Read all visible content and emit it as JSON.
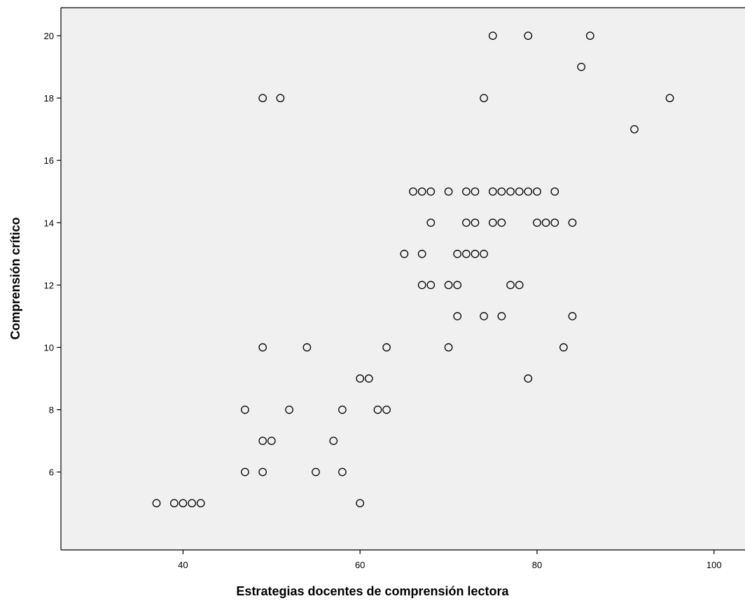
{
  "chart_data": {
    "type": "scatter",
    "title": "",
    "xlabel": "Estrategias docentes de comprensión lectora",
    "ylabel": "Comprensión crítico",
    "xlim": [
      26.2,
      103.5
    ],
    "ylim": [
      3.5,
      20.9
    ],
    "x_ticks": [
      40,
      60,
      80,
      100
    ],
    "y_ticks": [
      6,
      8,
      10,
      12,
      14,
      16,
      18,
      20
    ],
    "grid": false,
    "legend": "none",
    "colors": {
      "plot_background": "#f0f0f0",
      "marker_edge": "#000000",
      "frame": "#000000",
      "page_background": "#ffffff"
    },
    "marker": "open-circle",
    "points": [
      [
        75,
        20
      ],
      [
        79,
        20
      ],
      [
        86,
        20
      ],
      [
        85,
        19
      ],
      [
        49,
        18
      ],
      [
        51,
        18
      ],
      [
        74,
        18
      ],
      [
        95,
        18
      ],
      [
        91,
        17
      ],
      [
        66,
        15
      ],
      [
        67,
        15
      ],
      [
        68,
        15
      ],
      [
        70,
        15
      ],
      [
        72,
        15
      ],
      [
        73,
        15
      ],
      [
        75,
        15
      ],
      [
        76,
        15
      ],
      [
        77,
        15
      ],
      [
        78,
        15
      ],
      [
        79,
        15
      ],
      [
        80,
        15
      ],
      [
        82,
        15
      ],
      [
        68,
        14
      ],
      [
        72,
        14
      ],
      [
        73,
        14
      ],
      [
        75,
        14
      ],
      [
        76,
        14
      ],
      [
        80,
        14
      ],
      [
        81,
        14
      ],
      [
        82,
        14
      ],
      [
        84,
        14
      ],
      [
        65,
        13
      ],
      [
        67,
        13
      ],
      [
        71,
        13
      ],
      [
        72,
        13
      ],
      [
        73,
        13
      ],
      [
        74,
        13
      ],
      [
        67,
        12
      ],
      [
        68,
        12
      ],
      [
        70,
        12
      ],
      [
        71,
        12
      ],
      [
        77,
        12
      ],
      [
        78,
        12
      ],
      [
        71,
        11
      ],
      [
        74,
        11
      ],
      [
        76,
        11
      ],
      [
        84,
        11
      ],
      [
        49,
        10
      ],
      [
        54,
        10
      ],
      [
        63,
        10
      ],
      [
        70,
        10
      ],
      [
        83,
        10
      ],
      [
        60,
        9
      ],
      [
        61,
        9
      ],
      [
        79,
        9
      ],
      [
        47,
        8
      ],
      [
        52,
        8
      ],
      [
        58,
        8
      ],
      [
        62,
        8
      ],
      [
        63,
        8
      ],
      [
        49,
        7
      ],
      [
        50,
        7
      ],
      [
        57,
        7
      ],
      [
        47,
        6
      ],
      [
        49,
        6
      ],
      [
        55,
        6
      ],
      [
        58,
        6
      ],
      [
        37,
        5
      ],
      [
        39,
        5
      ],
      [
        40,
        5
      ],
      [
        41,
        5
      ],
      [
        42,
        5
      ],
      [
        60,
        5
      ]
    ]
  }
}
